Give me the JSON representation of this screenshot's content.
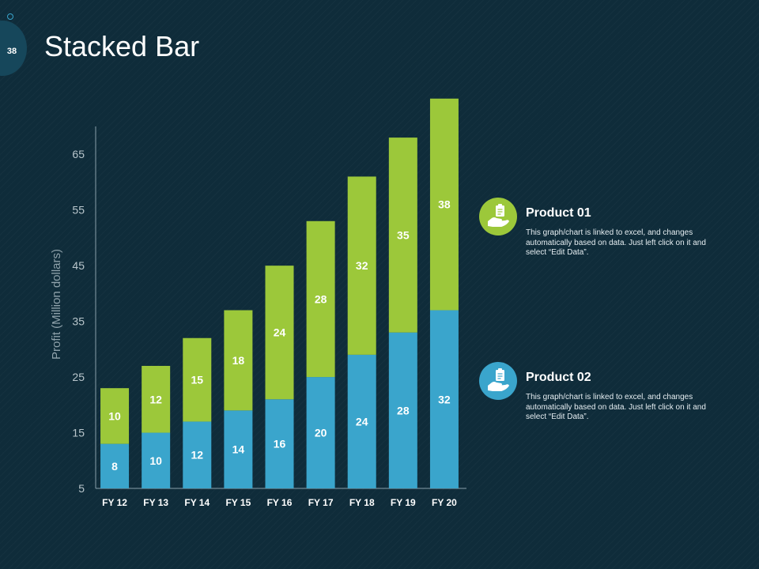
{
  "slide": {
    "number": "38",
    "title": "Stacked Bar"
  },
  "colors": {
    "background": "#0f2c3a",
    "product01": "#9cc83a",
    "product02": "#3aa5cc",
    "axis": "#8aa0ab"
  },
  "legend": [
    {
      "title": "Product 01",
      "description": "This graph/chart is linked to excel, and changes automatically based on data. Just left click on it and select “Edit Data”.",
      "icon": "hand-holding-clipboard-icon",
      "color": "#9cc83a"
    },
    {
      "title": "Product 02",
      "description": "This graph/chart is linked to excel, and changes automatically based on data. Just left click on it and select “Edit Data”.",
      "icon": "hand-holding-clipboard-icon",
      "color": "#3aa5cc"
    }
  ],
  "chart_data": {
    "type": "bar",
    "stacked": true,
    "title": "Stacked Bar",
    "xlabel": "",
    "ylabel": "Profit  (Million dollars)",
    "categories": [
      "FY 12",
      "FY 13",
      "FY 14",
      "FY 15",
      "FY 16",
      "FY 17",
      "FY 18",
      "FY 19",
      "FY 20"
    ],
    "series": [
      {
        "name": "Product 02",
        "color": "#3aa5cc",
        "values": [
          8,
          10,
          12,
          14,
          16,
          20,
          24,
          28,
          32
        ]
      },
      {
        "name": "Product 01",
        "color": "#9cc83a",
        "values": [
          10,
          12,
          15,
          18,
          24,
          28,
          32,
          35,
          38
        ]
      }
    ],
    "yticks": [
      5,
      15,
      25,
      35,
      45,
      55,
      65
    ],
    "ylim": [
      5,
      70
    ],
    "grid": false,
    "legend": "right"
  }
}
